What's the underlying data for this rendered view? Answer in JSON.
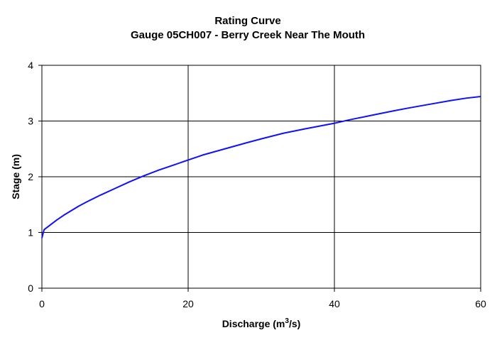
{
  "chart_data": {
    "type": "line",
    "title": "Rating Curve",
    "subtitle": "Gauge 05CH007 - Berry Creek Near The Mouth",
    "xlabel": "Discharge (m³/s)",
    "xlabel_parts": {
      "pre": "Discharge (m",
      "sup": "3",
      "post": "/s)"
    },
    "ylabel": "Stage (m)",
    "xlim": [
      0,
      60
    ],
    "ylim": [
      0,
      4
    ],
    "x_ticks": [
      0,
      20,
      40,
      60
    ],
    "y_ticks": [
      0,
      1,
      2,
      3,
      4
    ],
    "grid": true,
    "legend": "none",
    "series": [
      {
        "color": "#1010ff",
        "points": [
          [
            0.0,
            0.9
          ],
          [
            0.3,
            1.05
          ],
          [
            1,
            1.12
          ],
          [
            2,
            1.22
          ],
          [
            3,
            1.31
          ],
          [
            4,
            1.39
          ],
          [
            5,
            1.47
          ],
          [
            6,
            1.54
          ],
          [
            8,
            1.67
          ],
          [
            10,
            1.79
          ],
          [
            12,
            1.91
          ],
          [
            14,
            2.02
          ],
          [
            16,
            2.12
          ],
          [
            18,
            2.21
          ],
          [
            20,
            2.3
          ],
          [
            22,
            2.39
          ],
          [
            25,
            2.5
          ],
          [
            28,
            2.61
          ],
          [
            30,
            2.68
          ],
          [
            33,
            2.78
          ],
          [
            36,
            2.86
          ],
          [
            40,
            2.96
          ],
          [
            42,
            3.02
          ],
          [
            45,
            3.1
          ],
          [
            48,
            3.18
          ],
          [
            50,
            3.23
          ],
          [
            53,
            3.3
          ],
          [
            56,
            3.37
          ],
          [
            58,
            3.41
          ],
          [
            60,
            3.44
          ]
        ]
      }
    ]
  }
}
